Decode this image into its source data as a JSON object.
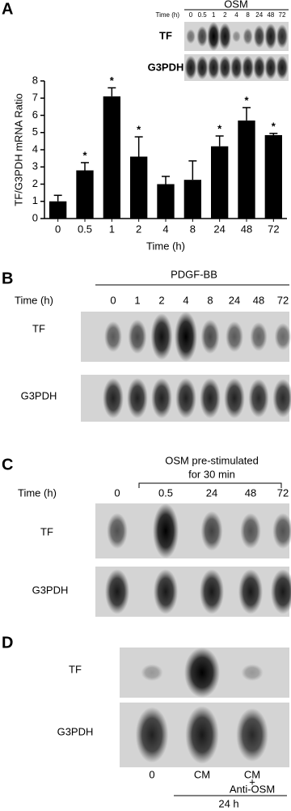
{
  "chart_data": {
    "type": "bar",
    "panel": "A",
    "y_label": "TF/G3PDH mRNA Ratio",
    "x_label": "Time (h)",
    "categories": [
      "0",
      "0.5",
      "1",
      "2",
      "4",
      "8",
      "24",
      "48",
      "72"
    ],
    "values": [
      1.0,
      2.8,
      7.1,
      3.6,
      2.0,
      2.25,
      4.2,
      5.7,
      4.85
    ],
    "errors": [
      0.35,
      0.45,
      0.5,
      1.15,
      0.45,
      1.1,
      0.6,
      0.75,
      0.1
    ],
    "color": "#000000",
    "ylim": [
      0,
      8
    ],
    "yticks": [
      0,
      1,
      2,
      3,
      4,
      5,
      6,
      7,
      8
    ],
    "annotations": [
      {
        "text": "*",
        "at": "0.5"
      },
      {
        "text": "*",
        "at": "1"
      },
      {
        "text": "*",
        "at": "2"
      },
      {
        "text": "*",
        "at": "24"
      },
      {
        "text": "*",
        "at": "48"
      },
      {
        "text": "*",
        "at": "72"
      }
    ],
    "inset": {
      "treatment": "OSM",
      "time_label": "Time (h)",
      "lanes": [
        "0",
        "0.5",
        "1",
        "2",
        "4",
        "8",
        "24",
        "48",
        "72"
      ],
      "rows": [
        "TF",
        "G3PDH"
      ]
    }
  },
  "panels": [
    {
      "label": "B",
      "treatment": "PDGF-BB",
      "time_label": "Time (h)",
      "lanes": [
        "0",
        "1",
        "2",
        "4",
        "8",
        "24",
        "48",
        "72"
      ],
      "rows": [
        "TF",
        "G3PDH"
      ]
    },
    {
      "label": "C",
      "treatment": [
        "OSM pre-stimulated",
        "for 30 min"
      ],
      "time_label": "Time (h)",
      "lanes": [
        "0",
        "0.5",
        "24",
        "48",
        "72"
      ],
      "rows": [
        "TF",
        "G3PDH"
      ]
    },
    {
      "label": "D",
      "lanes": [
        [
          "0"
        ],
        [
          "CM"
        ],
        [
          "CM",
          "+",
          "Anti-OSM"
        ]
      ],
      "time_label": "24 h",
      "rows": [
        "TF",
        "G3PDH"
      ]
    }
  ]
}
